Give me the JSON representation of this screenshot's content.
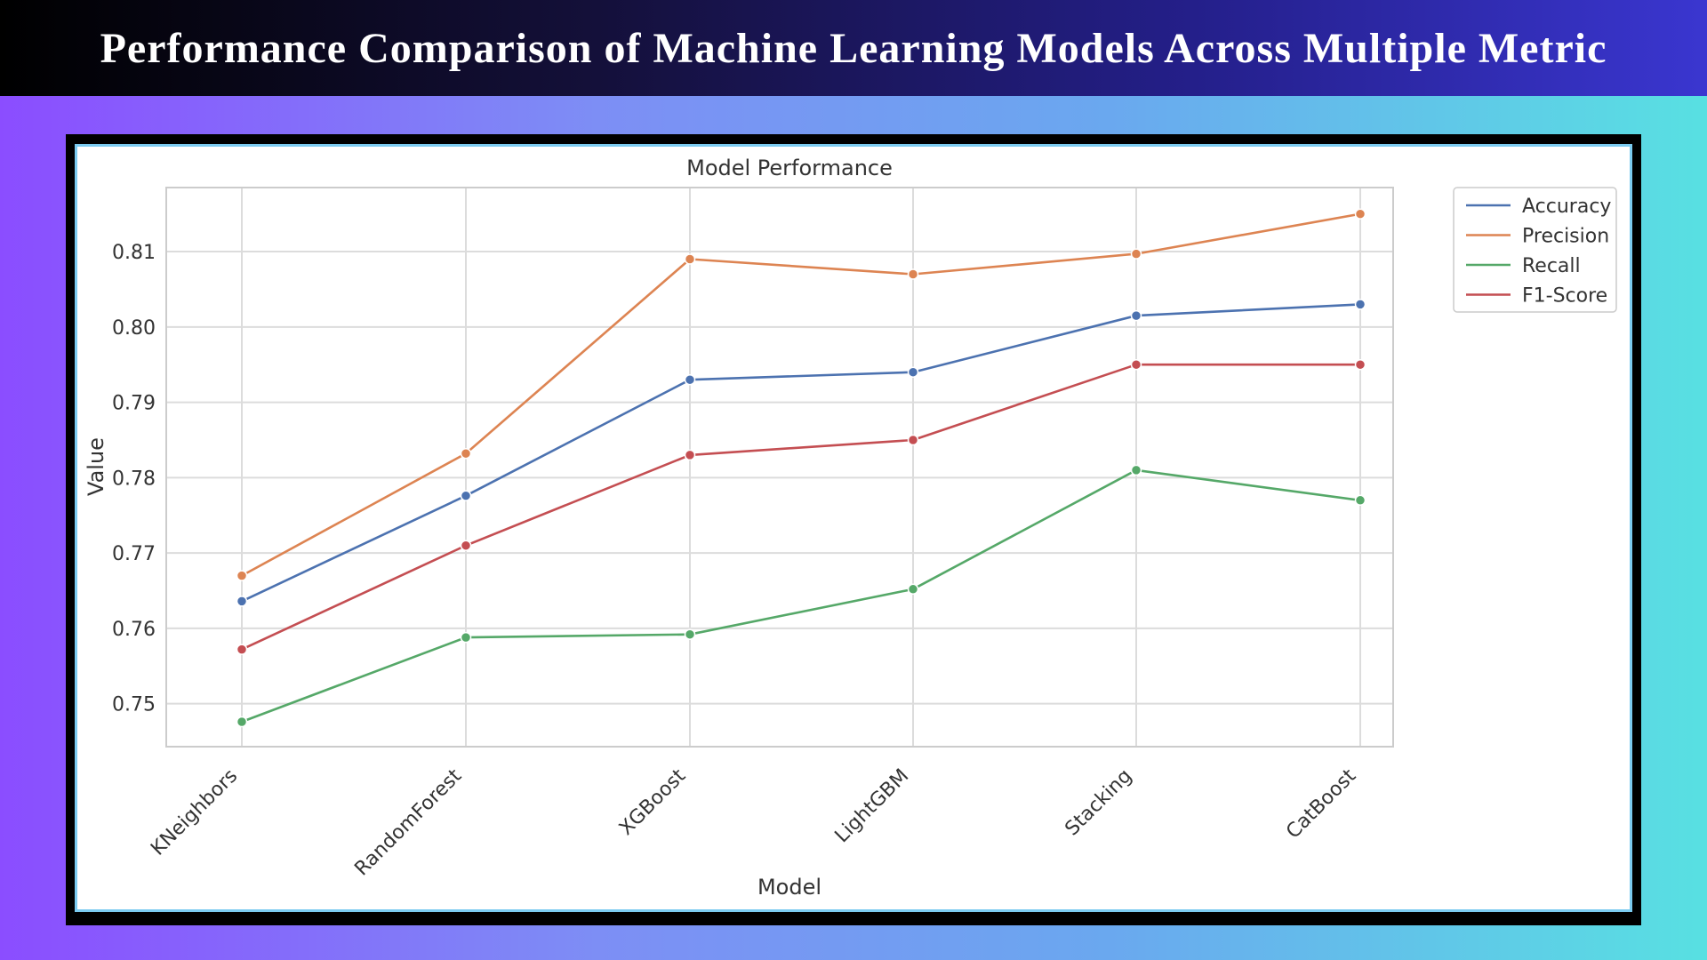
{
  "header": {
    "title": "Performance Comparison of Machine Learning Models Across Multiple Metric"
  },
  "chart_data": {
    "type": "line",
    "title": "Model Performance",
    "xlabel": "Model",
    "ylabel": "Value",
    "categories": [
      "KNeighbors",
      "RandomForest",
      "XGBoost",
      "LightGBM",
      "Stacking",
      "CatBoost"
    ],
    "ylim": [
      0.7443,
      0.8185
    ],
    "yticks": [
      0.75,
      0.76,
      0.77,
      0.78,
      0.79,
      0.8,
      0.81
    ],
    "ytick_labels": [
      "0.75",
      "0.76",
      "0.77",
      "0.78",
      "0.79",
      "0.80",
      "0.81"
    ],
    "grid": true,
    "legend_position": "upper-right-outside",
    "series": [
      {
        "name": "Accuracy",
        "color": "#4c72b0",
        "values": [
          0.7636,
          0.7776,
          0.793,
          0.794,
          0.8015,
          0.803
        ]
      },
      {
        "name": "Precision",
        "color": "#dd8452",
        "values": [
          0.767,
          0.7832,
          0.809,
          0.807,
          0.8097,
          0.815
        ]
      },
      {
        "name": "Recall",
        "color": "#55a868",
        "values": [
          0.7476,
          0.7588,
          0.7592,
          0.7652,
          0.781,
          0.777
        ]
      },
      {
        "name": "F1-Score",
        "color": "#c44e52",
        "values": [
          0.7572,
          0.771,
          0.783,
          0.785,
          0.795,
          0.795
        ]
      }
    ]
  }
}
